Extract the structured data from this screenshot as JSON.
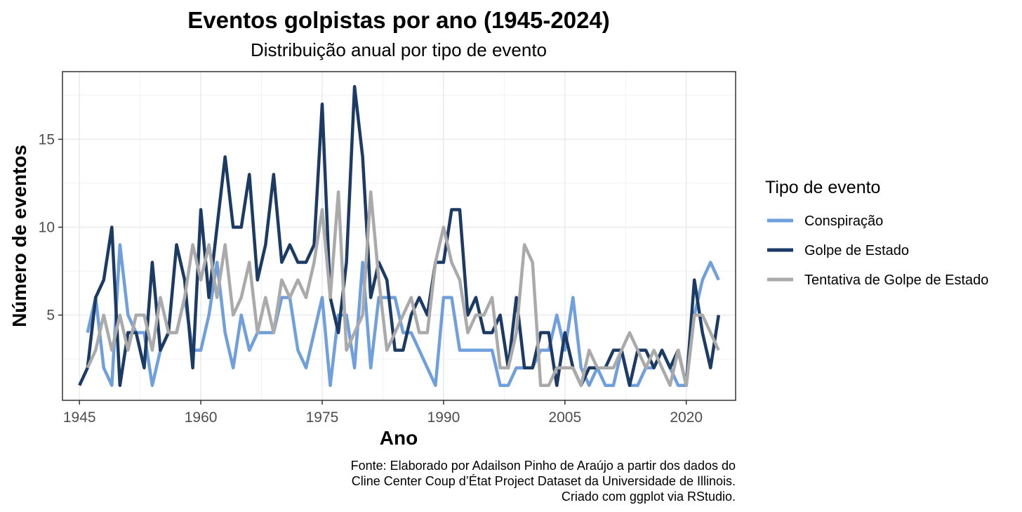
{
  "chart_data": {
    "type": "line",
    "title": "Eventos golpistas por ano (1945-2024)",
    "subtitle": "Distribuição anual por tipo de evento",
    "xlabel": "Ano",
    "ylabel": "Número de eventos",
    "xlim": [
      1942.9,
      2026.1
    ],
    "ylim": [
      0.15,
      18.85
    ],
    "x_ticks": [
      1945,
      1960,
      1975,
      1990,
      2005,
      2020
    ],
    "y_ticks": [
      5,
      10,
      15
    ],
    "grid": true,
    "legend": {
      "title": "Tipo de evento",
      "position": "right"
    },
    "caption": [
      "Fonte: Elaborado por Adailson Pinho de Araújo a partir dos dados do",
      "Cline Center Coup d’État Project Dataset da Universidade de Illinois.",
      "Criado com ggplot via RStudio."
    ],
    "series": [
      {
        "name": "Conspiração",
        "color": "#6f9fdc",
        "points": [
          [
            1946,
            4
          ],
          [
            1947,
            6
          ],
          [
            1948,
            2
          ],
          [
            1949,
            1
          ],
          [
            1950,
            9
          ],
          [
            1951,
            5
          ],
          [
            1952,
            4
          ],
          [
            1953,
            4
          ],
          [
            1954,
            1
          ],
          [
            1955,
            3
          ],
          [
            1956,
            4
          ],
          [
            1957,
            4
          ],
          [
            1958,
            6
          ],
          [
            1959,
            3
          ],
          [
            1960,
            3
          ],
          [
            1961,
            5
          ],
          [
            1962,
            8
          ],
          [
            1963,
            4
          ],
          [
            1964,
            2
          ],
          [
            1965,
            5
          ],
          [
            1966,
            3
          ],
          [
            1967,
            4
          ],
          [
            1968,
            4
          ],
          [
            1969,
            4
          ],
          [
            1970,
            6
          ],
          [
            1971,
            6
          ],
          [
            1972,
            3
          ],
          [
            1973,
            2
          ],
          [
            1974,
            4
          ],
          [
            1975,
            6
          ],
          [
            1976,
            1
          ],
          [
            1977,
            5
          ],
          [
            1978,
            5
          ],
          [
            1979,
            2
          ],
          [
            1980,
            8
          ],
          [
            1981,
            2
          ],
          [
            1982,
            6
          ],
          [
            1983,
            6
          ],
          [
            1984,
            6
          ],
          [
            1985,
            4
          ],
          [
            1986,
            4
          ],
          [
            1987,
            3
          ],
          [
            1988,
            2
          ],
          [
            1989,
            1
          ],
          [
            1990,
            6
          ],
          [
            1991,
            6
          ],
          [
            1992,
            3
          ],
          [
            1993,
            3
          ],
          [
            1994,
            3
          ],
          [
            1995,
            3
          ],
          [
            1996,
            3
          ],
          [
            1997,
            1
          ],
          [
            1998,
            1
          ],
          [
            1999,
            2
          ],
          [
            2000,
            2
          ],
          [
            2001,
            2
          ],
          [
            2002,
            3
          ],
          [
            2003,
            3
          ],
          [
            2004,
            5
          ],
          [
            2005,
            3
          ],
          [
            2006,
            6
          ],
          [
            2007,
            2
          ],
          [
            2008,
            1
          ],
          [
            2009,
            2
          ],
          [
            2010,
            1
          ],
          [
            2011,
            1
          ],
          [
            2012,
            3
          ],
          [
            2013,
            1
          ],
          [
            2014,
            1
          ],
          [
            2015,
            2
          ],
          [
            2016,
            2
          ],
          [
            2017,
            3
          ],
          [
            2018,
            2
          ],
          [
            2019,
            1
          ],
          [
            2020,
            1
          ],
          [
            2021,
            5
          ],
          [
            2022,
            7
          ],
          [
            2023,
            8
          ],
          [
            2024,
            7
          ]
        ]
      },
      {
        "name": "Golpe de Estado",
        "color": "#1b3a64",
        "points": [
          [
            1945,
            1
          ],
          [
            1946,
            2
          ],
          [
            1947,
            6
          ],
          [
            1948,
            7
          ],
          [
            1949,
            10
          ],
          [
            1950,
            1
          ],
          [
            1951,
            4
          ],
          [
            1952,
            4
          ],
          [
            1953,
            2
          ],
          [
            1954,
            8
          ],
          [
            1955,
            3
          ],
          [
            1956,
            4
          ],
          [
            1957,
            9
          ],
          [
            1958,
            7
          ],
          [
            1959,
            2
          ],
          [
            1960,
            11
          ],
          [
            1961,
            6
          ],
          [
            1962,
            10
          ],
          [
            1963,
            14
          ],
          [
            1964,
            10
          ],
          [
            1965,
            10
          ],
          [
            1966,
            13
          ],
          [
            1967,
            7
          ],
          [
            1968,
            9
          ],
          [
            1969,
            13
          ],
          [
            1970,
            8
          ],
          [
            1971,
            9
          ],
          [
            1972,
            8
          ],
          [
            1973,
            8
          ],
          [
            1974,
            9
          ],
          [
            1975,
            17
          ],
          [
            1976,
            6
          ],
          [
            1977,
            4
          ],
          [
            1978,
            8
          ],
          [
            1979,
            18
          ],
          [
            1980,
            14
          ],
          [
            1981,
            6
          ],
          [
            1982,
            8
          ],
          [
            1983,
            7
          ],
          [
            1984,
            3
          ],
          [
            1985,
            3
          ],
          [
            1986,
            5
          ],
          [
            1987,
            6
          ],
          [
            1988,
            5
          ],
          [
            1989,
            8
          ],
          [
            1990,
            8
          ],
          [
            1991,
            11
          ],
          [
            1992,
            11
          ],
          [
            1993,
            5
          ],
          [
            1994,
            6
          ],
          [
            1995,
            4
          ],
          [
            1996,
            4
          ],
          [
            1997,
            5
          ],
          [
            1998,
            2
          ],
          [
            1999,
            6
          ],
          [
            2000,
            2
          ],
          [
            2001,
            2
          ],
          [
            2002,
            4
          ],
          [
            2003,
            4
          ],
          [
            2004,
            1
          ],
          [
            2005,
            4
          ],
          [
            2006,
            2
          ],
          [
            2007,
            1
          ],
          [
            2008,
            2
          ],
          [
            2009,
            2
          ],
          [
            2010,
            2
          ],
          [
            2011,
            3
          ],
          [
            2012,
            3
          ],
          [
            2013,
            1
          ],
          [
            2014,
            3
          ],
          [
            2015,
            3
          ],
          [
            2016,
            2
          ],
          [
            2017,
            3
          ],
          [
            2018,
            2
          ],
          [
            2019,
            3
          ],
          [
            2020,
            1
          ],
          [
            2021,
            7
          ],
          [
            2022,
            4
          ],
          [
            2023,
            2
          ],
          [
            2024,
            5
          ]
        ]
      },
      {
        "name": "Tentativa de Golpe de Estado",
        "color": "#aaaaaa",
        "points": [
          [
            1946,
            2
          ],
          [
            1947,
            3
          ],
          [
            1948,
            5
          ],
          [
            1949,
            3
          ],
          [
            1950,
            5
          ],
          [
            1951,
            3
          ],
          [
            1952,
            5
          ],
          [
            1953,
            5
          ],
          [
            1954,
            3
          ],
          [
            1955,
            6
          ],
          [
            1956,
            4
          ],
          [
            1957,
            4
          ],
          [
            1958,
            6
          ],
          [
            1959,
            9
          ],
          [
            1960,
            7
          ],
          [
            1961,
            9
          ],
          [
            1962,
            6
          ],
          [
            1963,
            9
          ],
          [
            1964,
            5
          ],
          [
            1965,
            6
          ],
          [
            1966,
            8
          ],
          [
            1967,
            4
          ],
          [
            1968,
            6
          ],
          [
            1969,
            4
          ],
          [
            1970,
            7
          ],
          [
            1971,
            6
          ],
          [
            1972,
            7
          ],
          [
            1973,
            6
          ],
          [
            1974,
            8
          ],
          [
            1975,
            11
          ],
          [
            1976,
            6
          ],
          [
            1977,
            12
          ],
          [
            1978,
            3
          ],
          [
            1979,
            4
          ],
          [
            1980,
            5
          ],
          [
            1981,
            12
          ],
          [
            1982,
            7
          ],
          [
            1983,
            3
          ],
          [
            1984,
            4
          ],
          [
            1985,
            5
          ],
          [
            1986,
            6
          ],
          [
            1987,
            4
          ],
          [
            1988,
            4
          ],
          [
            1989,
            8
          ],
          [
            1990,
            10
          ],
          [
            1991,
            8
          ],
          [
            1992,
            7
          ],
          [
            1993,
            4
          ],
          [
            1994,
            5
          ],
          [
            1995,
            5
          ],
          [
            1996,
            6
          ],
          [
            1997,
            2
          ],
          [
            1998,
            2
          ],
          [
            1999,
            4
          ],
          [
            2000,
            9
          ],
          [
            2001,
            8
          ],
          [
            2002,
            1
          ],
          [
            2003,
            1
          ],
          [
            2004,
            2
          ],
          [
            2005,
            2
          ],
          [
            2006,
            2
          ],
          [
            2007,
            1
          ],
          [
            2008,
            3
          ],
          [
            2009,
            2
          ],
          [
            2010,
            2
          ],
          [
            2011,
            2
          ],
          [
            2012,
            3
          ],
          [
            2013,
            4
          ],
          [
            2014,
            3
          ],
          [
            2015,
            2
          ],
          [
            2016,
            3
          ],
          [
            2017,
            2
          ],
          [
            2018,
            1
          ],
          [
            2019,
            3
          ],
          [
            2020,
            1
          ],
          [
            2021,
            5
          ],
          [
            2022,
            5
          ],
          [
            2023,
            4
          ],
          [
            2024,
            3
          ]
        ]
      }
    ]
  }
}
